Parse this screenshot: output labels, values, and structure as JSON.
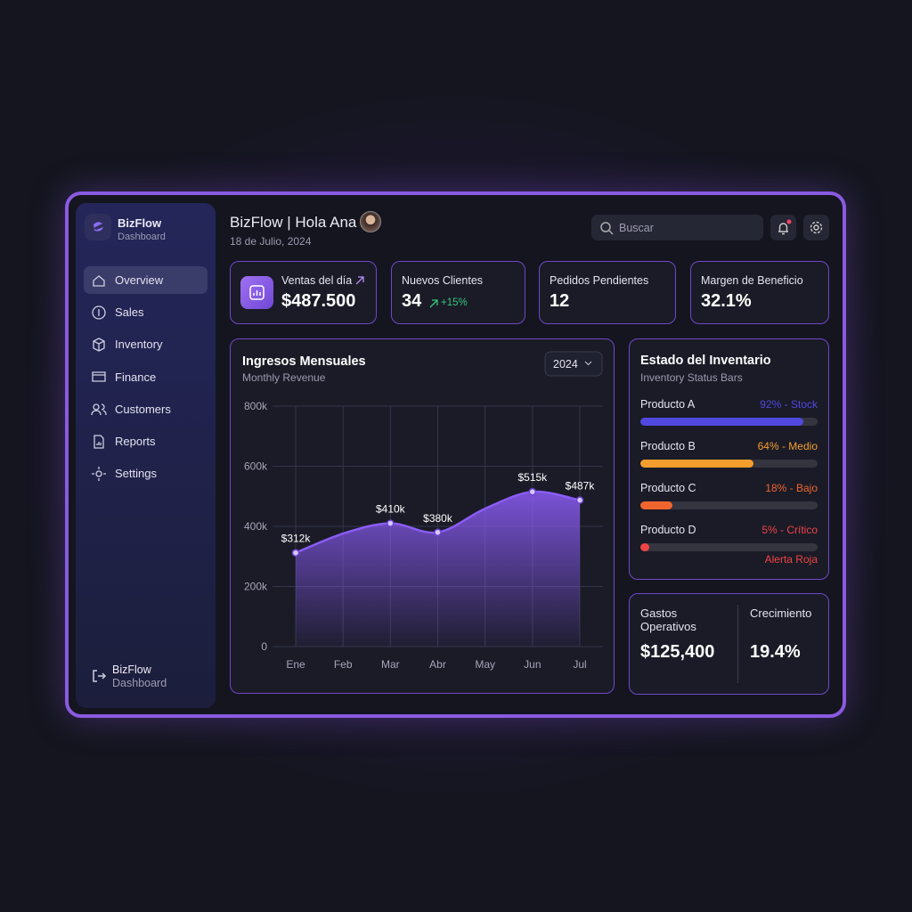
{
  "sidebar": {
    "brand": "BizFlow",
    "brand_sub": "Dashboard",
    "nav": [
      "Overview",
      "Sales",
      "Inventory",
      "Finance",
      "Customers",
      "Reports",
      "Settings"
    ],
    "active": 0,
    "footer": {
      "title": "BizFlow",
      "subtitle": "Dashboard"
    }
  },
  "header": {
    "title": "BizFlow | Hola Ana",
    "date": "18 de Julio, 2024",
    "search_placeholder": "Buscar"
  },
  "kpis": [
    {
      "label": "Ventas del día",
      "value": "$487.500"
    },
    {
      "label": "Nuevos Clientes",
      "value": "34",
      "change": "+15%"
    },
    {
      "label": "Pedidos Pendientes",
      "value": "12"
    },
    {
      "label": "Margen de Beneficio",
      "value": "32.1%"
    }
  ],
  "chart_data": {
    "type": "area",
    "title": "Ingresos Mensuales",
    "subtitle": "Monthly Revenue",
    "year": "2024",
    "categories": [
      "Ene",
      "Feb",
      "Mar",
      "Abr",
      "May",
      "Jun",
      "Jul"
    ],
    "values": [
      312000,
      376000,
      410000,
      380000,
      459000,
      515000,
      487000
    ],
    "value_labels": [
      "$312k",
      null,
      "$410k",
      "$380k",
      null,
      "$515k",
      "$487k"
    ],
    "ylim": [
      0,
      800000
    ],
    "yticks": [
      0,
      {
        "value": 200000,
        "label": "200k"
      },
      {
        "value": 400000,
        "label": "400k"
      },
      {
        "value": 600000,
        "label": "600k"
      },
      {
        "value": 800000,
        "label": "800k"
      }
    ],
    "color": "#8b5cf6",
    "grid": true
  },
  "inventory": {
    "title": "Estado del Inventario",
    "subtitle": "Inventory Status Bars",
    "xlim": [
      0,
      100
    ],
    "items": [
      {
        "name": "Producto A",
        "value": 92,
        "label": "92% - Stock",
        "color": "#5148e0"
      },
      {
        "name": "Producto B",
        "value": 64,
        "label": "64% - Medio",
        "color": "#f59e2e"
      },
      {
        "name": "Producto C",
        "value": 18,
        "label": "18% - Bajo",
        "color": "#f0652e"
      },
      {
        "name": "Producto D",
        "value": 5,
        "label": "5% - Crítico",
        "color": "#ef4444"
      }
    ],
    "alert": "Alerta Roja"
  },
  "summary": [
    {
      "label": "Gastos Operativos",
      "value": "$125,400"
    },
    {
      "label": "Crecimiento",
      "value": "19.4%"
    }
  ]
}
